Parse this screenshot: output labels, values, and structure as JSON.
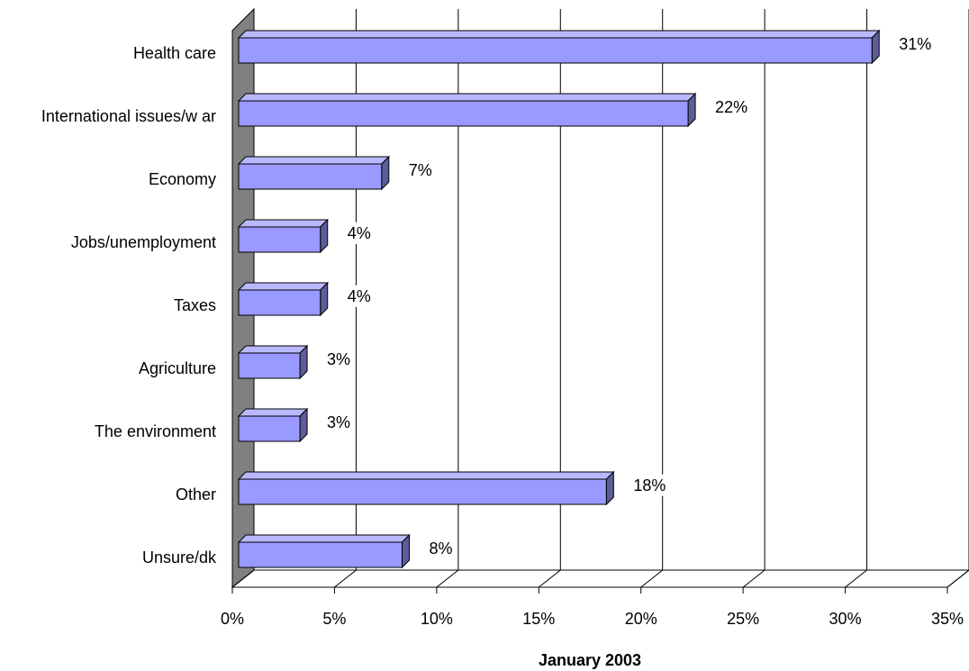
{
  "chart_data": {
    "type": "bar",
    "orientation": "horizontal",
    "x_label": "January 2003",
    "categories": [
      "Health care",
      "International issues/w ar",
      "Economy",
      "Jobs/unemployment",
      "Taxes",
      "Agriculture",
      "The environment",
      "Other",
      "Unsure/dk"
    ],
    "values": [
      31,
      22,
      7,
      4,
      4,
      3,
      3,
      18,
      8
    ],
    "value_labels": [
      "31%",
      "22%",
      "7%",
      "4%",
      "4%",
      "3%",
      "3%",
      "18%",
      "8%"
    ],
    "color": "#9999ff",
    "xlim": [
      0,
      35
    ],
    "xticks": [
      {
        "value": 0,
        "label": "0%"
      },
      {
        "value": 5,
        "label": "5%"
      },
      {
        "value": 10,
        "label": "10%"
      },
      {
        "value": 15,
        "label": "15%"
      },
      {
        "value": 20,
        "label": "20%"
      },
      {
        "value": 25,
        "label": "25%"
      },
      {
        "value": 30,
        "label": "30%"
      },
      {
        "value": 35,
        "label": "35%"
      }
    ],
    "grid": true
  }
}
